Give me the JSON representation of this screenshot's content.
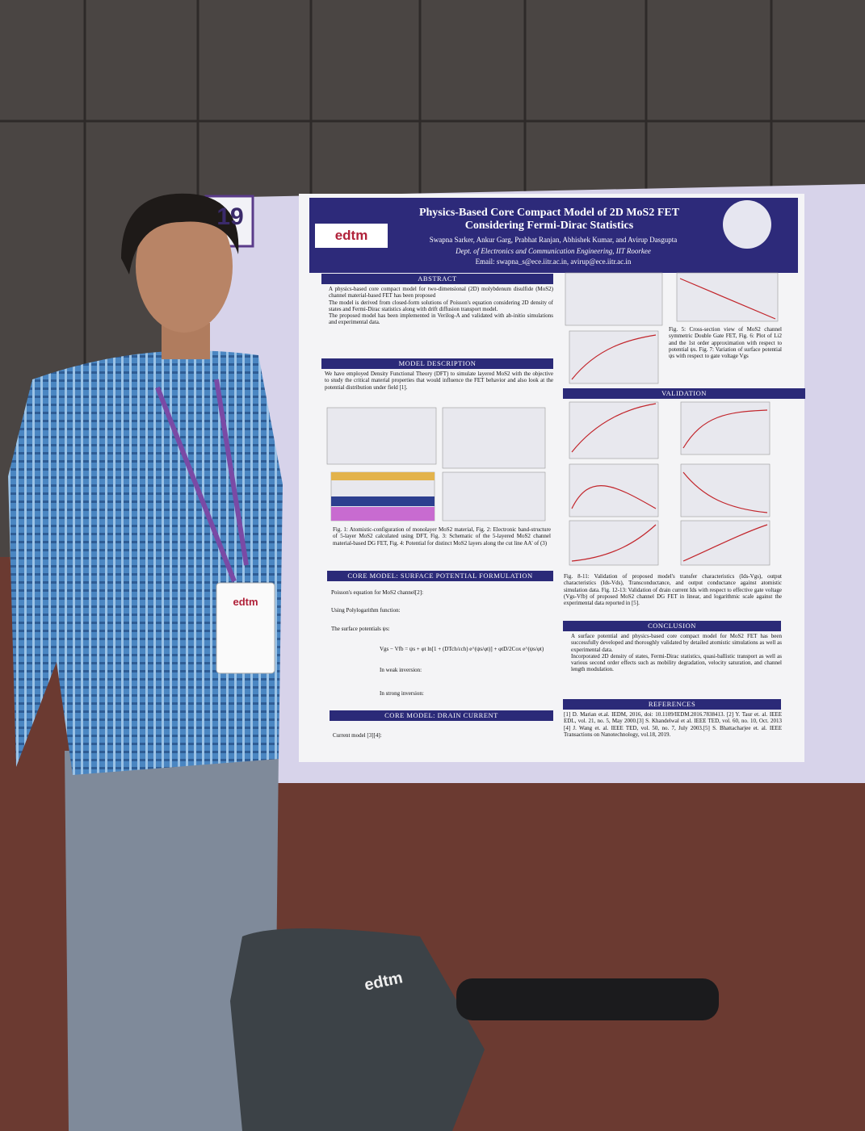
{
  "board_number": "19",
  "badge": "edtm",
  "bag_logo": "edtm",
  "poster": {
    "logo": "edtm",
    "title": "Physics-Based Core Compact Model of 2D MoS2 FET Considering Fermi-Dirac Statistics",
    "authors": "Swapna Sarker, Ankur Garg, Prabhat Ranjan, Abhishek Kumar, and Avirup Dasgupta",
    "affiliation": "Dept. of Electronics and Communication Engineering, IIT Roorkee",
    "email": "Email: swapna_s@ece.iitr.ac.in, avirup@ece.iitr.ac.in",
    "abstract": {
      "heading": "ABSTRACT",
      "bullets": [
        "A physics-based core compact model for two-dimensional (2D) molybdenum disulfide (MoS2) channel material-based FET has been proposed",
        "The model is derived from closed-form solutions of Poisson's equation considering 2D density of states and Fermi-Dirac statistics along with drift diffusion transport model.",
        "The proposed model has been implemented in Verilog-A and validated with ab-initio simulations and experimental data."
      ]
    },
    "model_description": {
      "heading": "MODEL DESCRIPTION",
      "text": "We have employed Density Functional Theory (DFT) to simulate layered MoS2 with the objective to study the critical material properties that would influence the FET behavior and also look at the potential distribution under field [1]."
    },
    "fig1_4_caption": "Fig. 1: Atomistic-configuration of monolayer MoS2 material, Fig. 2: Electronic band-structure of 5-layer MoS2 calculated using DFT, Fig. 3: Schematic of the 5-layered MoS2 channel material-based DG FET, Fig. 4: Potential for distinct MoS2 layers along the cut line AA' of (3)",
    "surface_potential": {
      "heading": "CORE MODEL: SURFACE POTENTIAL FORMULATION",
      "lines": [
        "Poisson's equation for MoS2 channel[2]:",
        "Using Polylogarithm function:",
        "The surface potentials ψs:",
        "Vgs − Vfb = ψs + φt ln[1 + (DTch/εch) e^(ψs/φt)] + φtD/2Cox e^(ψs/φt)",
        "In weak inversion:",
        "In strong inversion:"
      ]
    },
    "drain_current": {
      "heading": "CORE MODEL: DRAIN CURRENT",
      "line": "Current model [3][4]:"
    },
    "fig5_7_caption": "Fig. 5: Cross-section view of MoS2 channel symmetric Double Gate FET, Fig. 6: Plot of Li2 and the 1st order approximation with respect to potential ψs. Fig. 7: Variation of surface potential ψs with respect to gate voltage Vgs",
    "validation": {
      "heading": "VALIDATION",
      "caption": "Fig. 8-11: Validation of proposed model's transfer characteristics (Ids-Vgs), output characteristics (Ids-Vds), Transconductance, and output conductance against atomistic simulation data. Fig. 12-13: Validation of drain current Ids with respect to effective gate voltage (Vgs-Vfb) of proposed MoS2 channel DG FET in linear, and logarithmic scale against the experimental data reported in [5]."
    },
    "conclusion": {
      "heading": "CONCLUSION",
      "bullets": [
        "A surface potential and physics-based core compact model for MoS2 FET has been successfully developed and thoroughly validated by detailed atomistic simulations as well as experimental data.",
        "Incorporated 2D density of states, Fermi-Dirac statistics, quasi-ballistic transport as well as various second order effects such as mobility degradation, velocity saturation, and channel length modulation."
      ]
    },
    "references": {
      "heading": "REFERENCES",
      "text": "[1] D. Marian et.al. IEDM, 2016, doi: 10.1109/IEDM.2016.7838413. [2] Y. Taur et. al. IEEE EDL, vol. 21, no. 5, May 2000.[3] S. Khandelwal et al. IEEE TED, vol. 60, no. 10, Oct. 2013 [4] J. Wang et. al. IEEE TED, vol. 50, no. 7, July 2003.[5] S. Bhattacharjee et. al. IEEE Transactions on Nanotechnology, vol.18, 2019."
    }
  }
}
